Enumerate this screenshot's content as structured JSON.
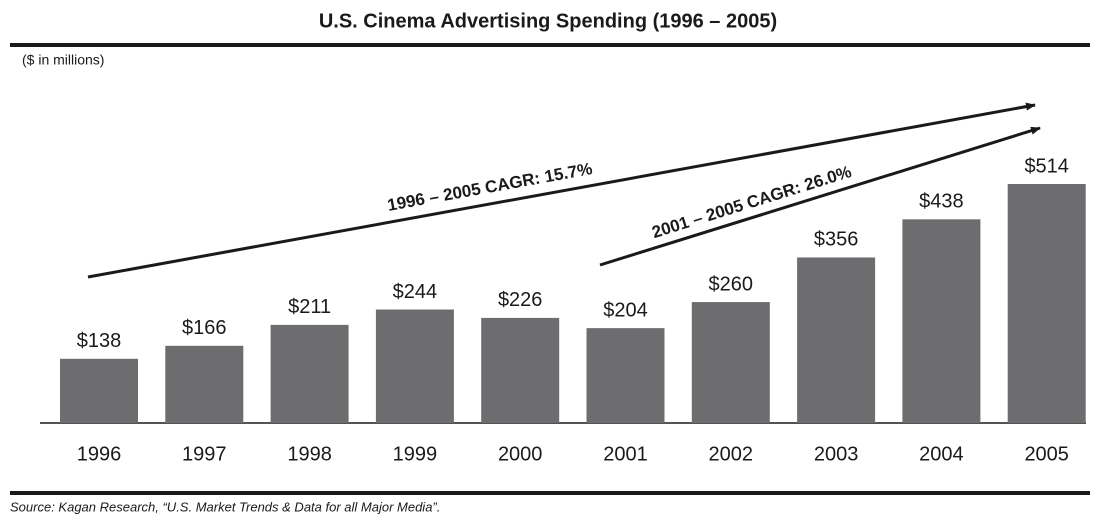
{
  "chart_data": {
    "type": "bar",
    "title": "U.S. Cinema Advertising  Spending (1996 – 2005)",
    "subtitle": "($ in millions)",
    "categories": [
      "1996",
      "1997",
      "1998",
      "1999",
      "2000",
      "2001",
      "2002",
      "2003",
      "2004",
      "2005"
    ],
    "values": [
      138,
      166,
      211,
      244,
      226,
      204,
      260,
      356,
      438,
      514
    ],
    "value_labels": [
      "$138",
      "$166",
      "$211",
      "$244",
      "$226",
      "$204",
      "$260",
      "$356",
      "$438",
      "$514"
    ],
    "color": "#6d6d6f",
    "annotations": [
      "1996 – 2005 CAGR: 15.7%",
      "2001 – 2005 CAGR: 26.0%"
    ],
    "source": "Source: Kagan Research, “U.S. Market Trends & Data for all Major Media”."
  }
}
